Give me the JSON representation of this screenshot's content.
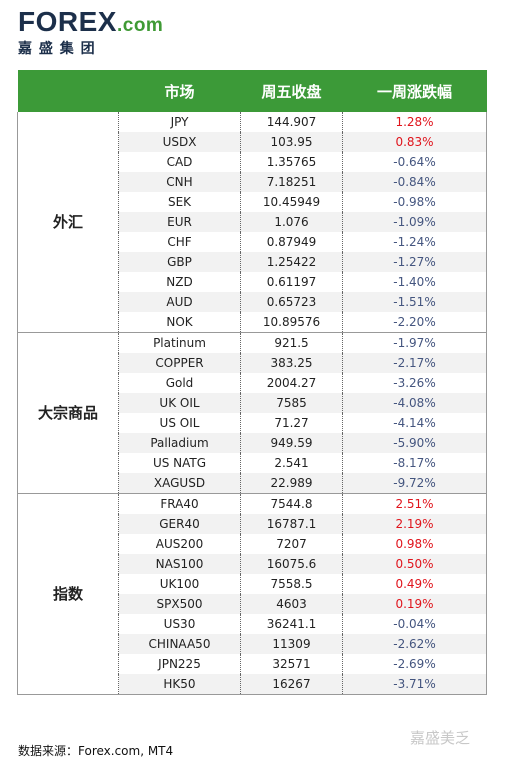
{
  "logo": {
    "name": "FOREX",
    "suffix": ".com",
    "subtitle": "嘉 盛 集 团"
  },
  "table": {
    "header": [
      "市场",
      "周五收盘",
      "一周涨跌幅"
    ],
    "groups": [
      {
        "name": "外汇",
        "rows": [
          [
            "JPY",
            "144.907",
            "1.28%"
          ],
          [
            "USDX",
            "103.95",
            "0.83%"
          ],
          [
            "CAD",
            "1.35765",
            "-0.64%"
          ],
          [
            "CNH",
            "7.18251",
            "-0.84%"
          ],
          [
            "SEK",
            "10.45949",
            "-0.98%"
          ],
          [
            "EUR",
            "1.076",
            "-1.09%"
          ],
          [
            "CHF",
            "0.87949",
            "-1.24%"
          ],
          [
            "GBP",
            "1.25422",
            "-1.27%"
          ],
          [
            "NZD",
            "0.61197",
            "-1.40%"
          ],
          [
            "AUD",
            "0.65723",
            "-1.51%"
          ],
          [
            "NOK",
            "10.89576",
            "-2.20%"
          ]
        ]
      },
      {
        "name": "大宗商品",
        "rows": [
          [
            "Platinum",
            "921.5",
            "-1.97%"
          ],
          [
            "COPPER",
            "383.25",
            "-2.17%"
          ],
          [
            "Gold",
            "2004.27",
            "-3.26%"
          ],
          [
            "UK OIL",
            "7585",
            "-4.08%"
          ],
          [
            "US OIL",
            "71.27",
            "-4.14%"
          ],
          [
            "Palladium",
            "949.59",
            "-5.90%"
          ],
          [
            "US NATG",
            "2.541",
            "-8.17%"
          ],
          [
            "XAGUSD",
            "22.989",
            "-9.72%"
          ]
        ]
      },
      {
        "name": "指数",
        "rows": [
          [
            "FRA40",
            "7544.8",
            "2.51%"
          ],
          [
            "GER40",
            "16787.1",
            "2.19%"
          ],
          [
            "AUS200",
            "7207",
            "0.98%"
          ],
          [
            "NAS100",
            "16075.6",
            "0.50%"
          ],
          [
            "UK100",
            "7558.5",
            "0.49%"
          ],
          [
            "SPX500",
            "4603",
            "0.19%"
          ],
          [
            "US30",
            "36241.1",
            "-0.04%"
          ],
          [
            "CHINAA50",
            "11309",
            "-2.62%"
          ],
          [
            "JPN225",
            "32571",
            "-2.69%"
          ],
          [
            "HK50",
            "16267",
            "-3.71%"
          ]
        ]
      }
    ]
  },
  "footer": "数据来源：Forex.com, MT4",
  "watermark": "嘉盛美乏"
}
